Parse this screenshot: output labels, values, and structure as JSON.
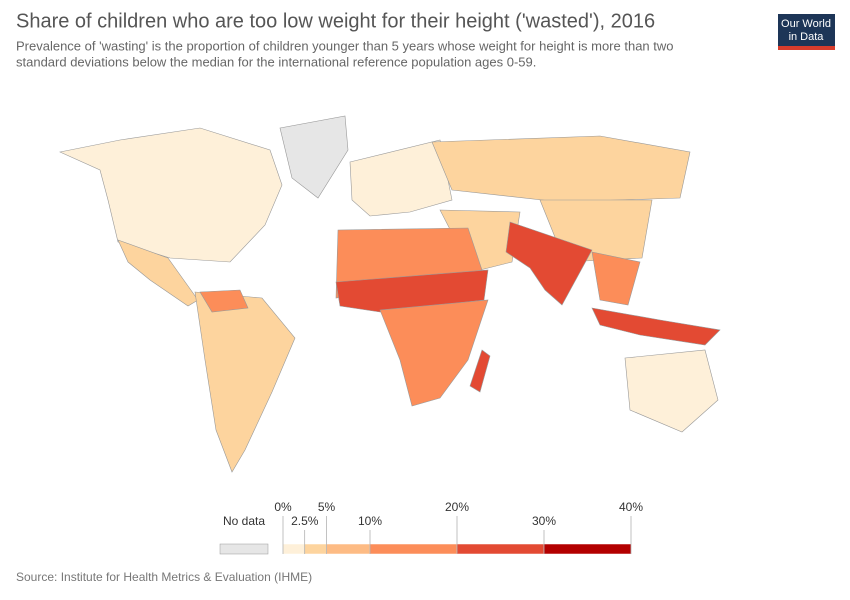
{
  "header": {
    "title": "Share of children who are too low weight for their height ('wasted'), 2016",
    "subtitle": [
      "Prevalence of 'wasting' is the proportion of children younger than 5 years whose weight for height is more than two",
      "standard deviations below the median for the international reference population ages 0-59."
    ]
  },
  "logo": {
    "line1": "Our World",
    "line2": "in Data"
  },
  "legend": {
    "no_data_label": "No data",
    "no_data_color": "#e6e6e6",
    "ticks": [
      {
        "value": 0,
        "label": "0%"
      },
      {
        "value": 2.5,
        "label": "2.5%"
      },
      {
        "value": 5,
        "label": "5%"
      },
      {
        "value": 10,
        "label": "10%"
      },
      {
        "value": 20,
        "label": "20%"
      },
      {
        "value": 30,
        "label": "30%"
      },
      {
        "value": 40,
        "label": "40%"
      }
    ],
    "colors": [
      "#fef0d9",
      "#fdd49e",
      "#fdbb84",
      "#fc8d59",
      "#e34a33",
      "#b30000"
    ]
  },
  "source": "Source: Institute for Health Metrics & Evaluation (IHME)"
}
